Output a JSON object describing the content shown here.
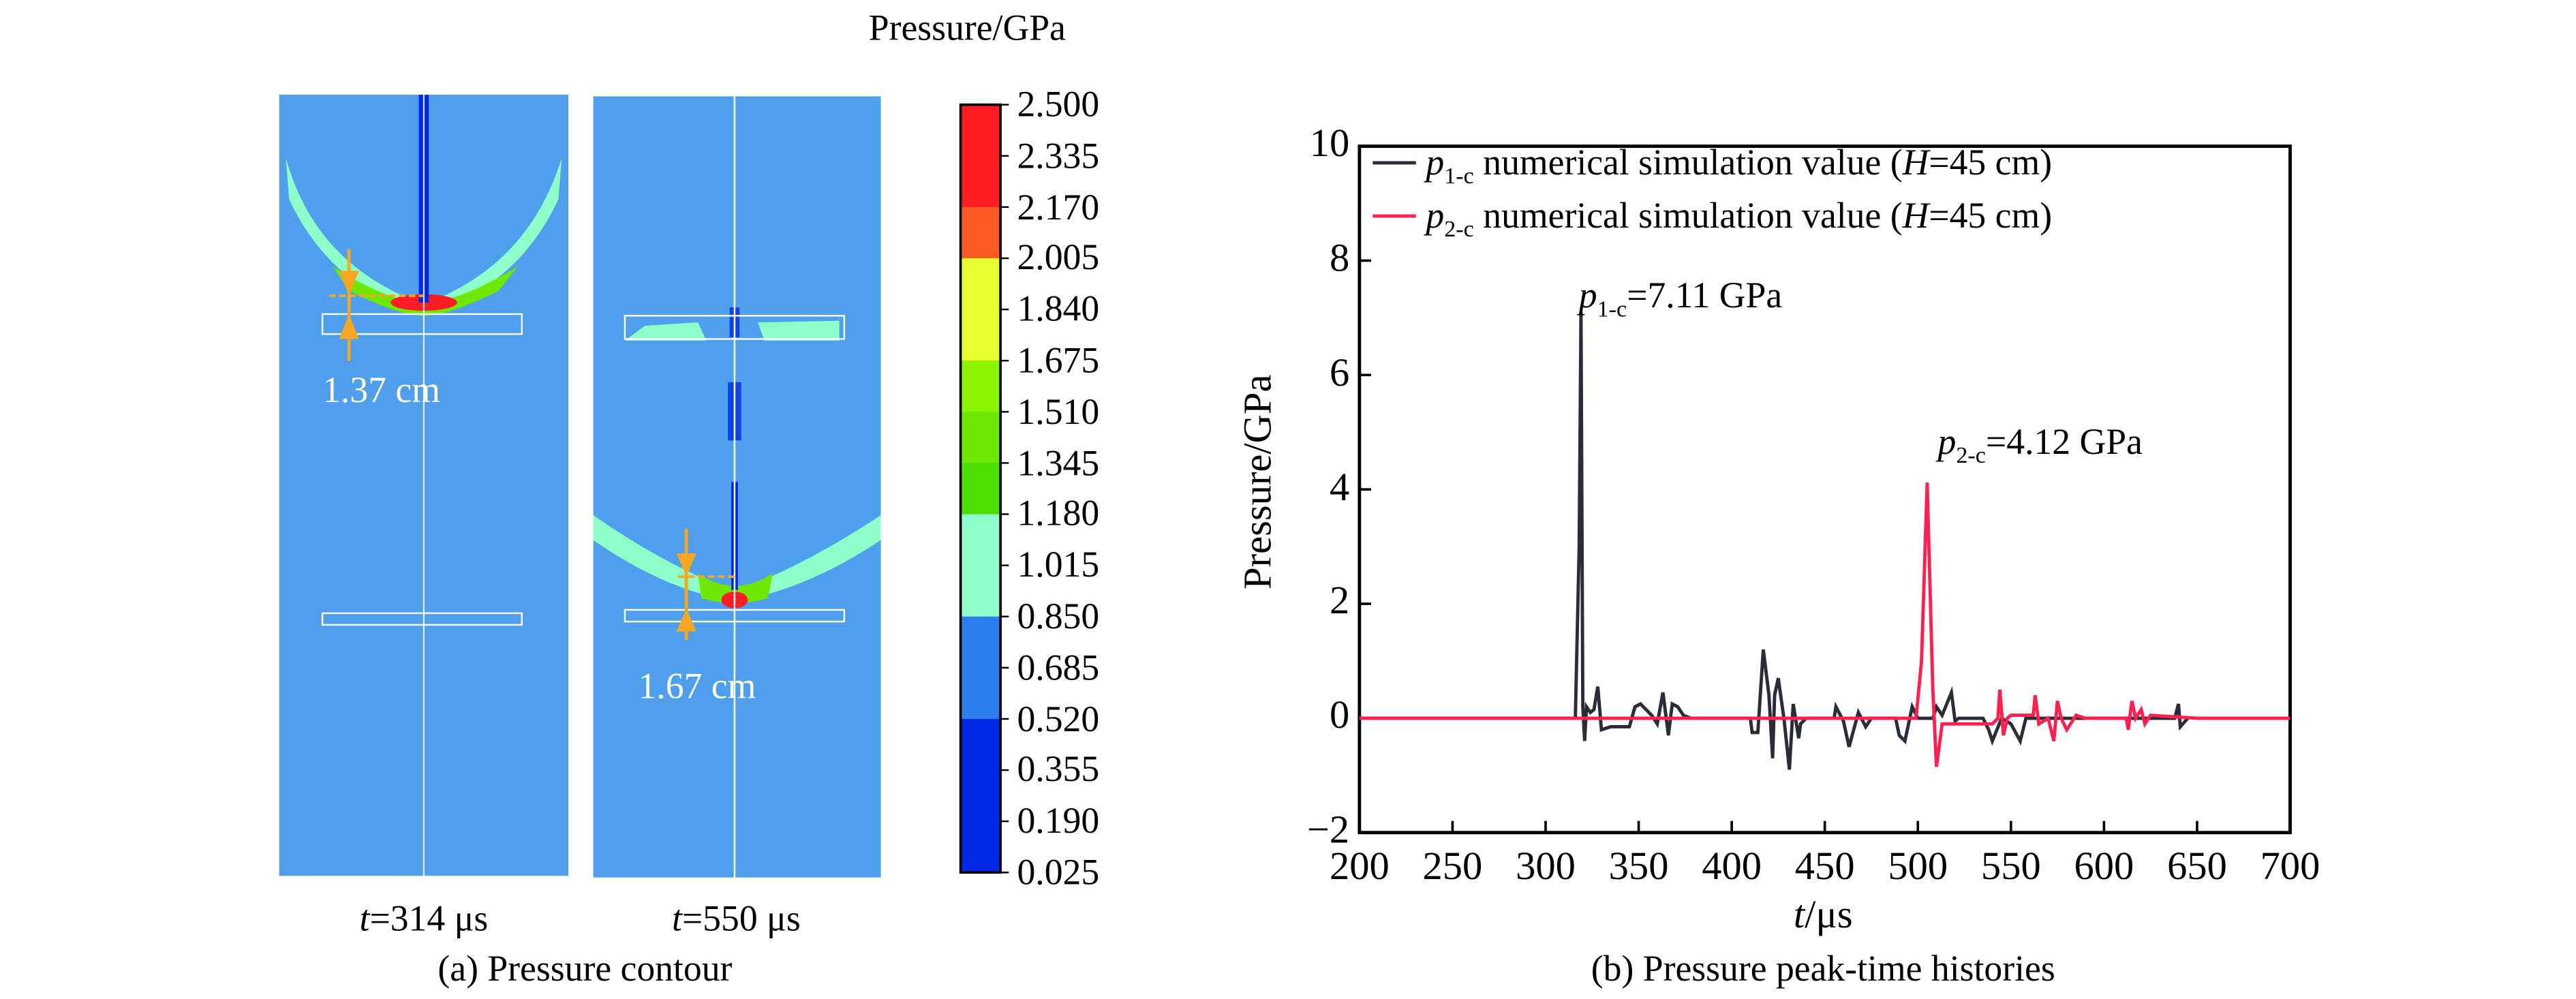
{
  "contour": {
    "colorbar_title": "Pressure/GPa",
    "colorbar_ticks": [
      "2.500",
      "2.335",
      "2.170",
      "2.005",
      "1.840",
      "1.675",
      "1.510",
      "1.345",
      "1.180",
      "1.015",
      "0.850",
      "0.685",
      "0.520",
      "0.355",
      "0.190",
      "0.025"
    ],
    "colorbar_colors": [
      "#ff1c24",
      "#ff1c24",
      "#ff5a24",
      "#e8ff30",
      "#e8ff30",
      "#8cf500",
      "#6ee800",
      "#4be000",
      "#8effc8",
      "#8effc8",
      "#2c7ef0",
      "#2c7ef0",
      "#0028e6",
      "#0028e6",
      "#0028e6"
    ],
    "background_color": "#4f9fed",
    "panels": [
      {
        "t_var": "t",
        "time_label": "=314 μs",
        "measure": "1.37 cm"
      },
      {
        "t_var": "t",
        "time_label": "=550 μs",
        "measure": "1.67 cm"
      }
    ],
    "caption": "(a) Pressure contour"
  },
  "chart_data": {
    "type": "line",
    "xlabel_var": "t",
    "xlabel_unit": "/μs",
    "ylabel": "Pressure/GPa",
    "xlim": [
      200,
      700
    ],
    "ylim": [
      -2,
      10
    ],
    "xticks": [
      "200",
      "250",
      "300",
      "350",
      "400",
      "450",
      "500",
      "550",
      "600",
      "650",
      "700"
    ],
    "yticks": [
      "10",
      "8",
      "6",
      "4",
      "2",
      "0",
      "−2"
    ],
    "legend_position": "top-left",
    "caption": "(b) Pressure peak-time histories",
    "series": [
      {
        "name_var": "p",
        "name_sub": "1-c",
        "name_rest": " numerical simulation value (",
        "name_h": "H",
        "name_tail": "=45 cm)",
        "color": "#2b2b3a",
        "x": [
          200,
          316,
          318,
          319,
          320,
          321,
          322,
          324,
          326,
          328,
          330,
          335,
          345,
          348,
          351,
          354,
          357,
          360,
          363,
          366,
          368,
          371,
          374,
          378,
          410,
          411,
          414,
          417,
          420,
          422,
          423,
          425,
          428,
          431,
          433,
          436,
          437,
          440,
          455,
          456,
          460,
          463,
          468,
          472,
          475,
          488,
          490,
          493,
          497,
          500,
          508,
          510,
          513,
          518,
          520,
          522,
          535,
          538,
          540,
          545,
          550,
          555,
          558,
          560,
          638,
          640,
          641,
          645
        ],
        "y": [
          0,
          0,
          3,
          7.11,
          0.2,
          -0.4,
          0.2,
          0.1,
          0.15,
          0.55,
          -0.2,
          -0.15,
          -0.15,
          0.2,
          0.25,
          0.15,
          0.05,
          -0.1,
          0.45,
          -0.3,
          0.25,
          0.2,
          0.05,
          0,
          0,
          -0.25,
          -0.25,
          1.2,
          0.4,
          -0.7,
          0.4,
          0.7,
          0,
          -0.9,
          0.25,
          -0.35,
          -0.1,
          0,
          0,
          0.2,
          -0.05,
          -0.5,
          0.1,
          -0.15,
          0,
          0,
          -0.3,
          -0.4,
          0.2,
          0,
          0,
          0.2,
          0.05,
          0.45,
          -0.05,
          0,
          0,
          -0.2,
          -0.4,
          0,
          -0.1,
          -0.4,
          0,
          0,
          0,
          0.25,
          -0.15,
          0
        ]
      },
      {
        "name_var": "p",
        "name_sub": "2-c",
        "name_rest": " numerical simulation value (",
        "name_h": "H",
        "name_tail": "=45 cm)",
        "color": "#ff2050",
        "x": [
          200,
          499,
          502,
          505,
          508,
          510,
          513,
          540,
          543,
          544,
          546,
          548,
          550,
          562,
          563,
          565,
          570,
          573,
          575,
          577,
          580,
          585,
          590,
          612,
          613,
          615,
          617,
          620,
          622,
          625,
          650,
          700
        ],
        "y": [
          0,
          0,
          1.0,
          4.12,
          0.5,
          -0.85,
          -0.1,
          -0.1,
          0,
          0.5,
          -0.3,
          0,
          0.05,
          0.05,
          0.4,
          -0.1,
          0,
          -0.4,
          0.3,
          0,
          -0.2,
          0.05,
          0,
          0,
          -0.2,
          0.3,
          0,
          0.15,
          -0.1,
          0.05,
          0,
          0
        ]
      }
    ],
    "annotations": [
      {
        "var": "p",
        "sub": "1-c",
        "text": "=7.11 GPa",
        "x": 319,
        "y": 7.11
      },
      {
        "var": "p",
        "sub": "2-c",
        "text": "=4.12 GPa",
        "x": 505,
        "y": 4.12
      }
    ]
  }
}
